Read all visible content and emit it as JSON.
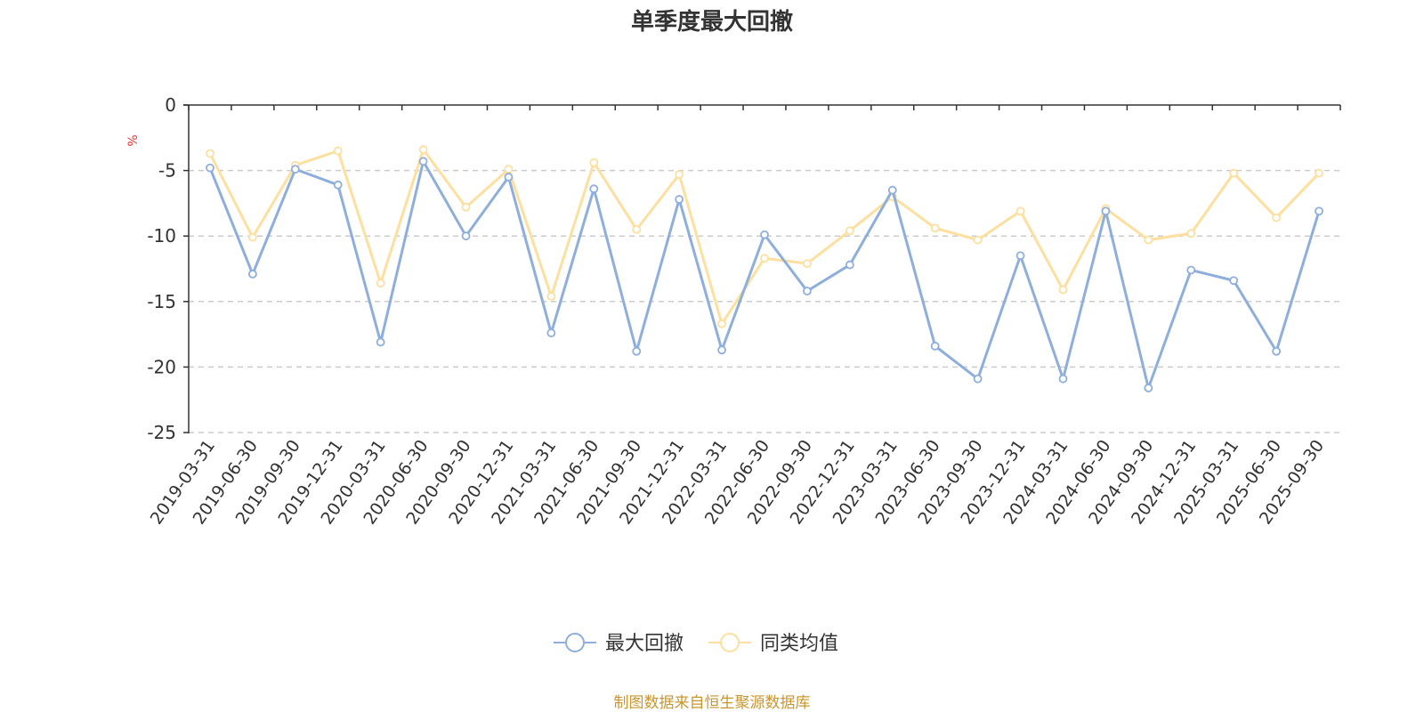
{
  "chart_data": {
    "type": "line",
    "title": "单季度最大回撤",
    "ylabel": "%",
    "xlabel": "",
    "ylim": [
      -25,
      0
    ],
    "yticks": [
      0,
      -5,
      -10,
      -15,
      -20,
      -25
    ],
    "grid": true,
    "legend_position": "bottom-center",
    "categories": [
      "2019-03-31",
      "2019-06-30",
      "2019-09-30",
      "2019-12-31",
      "2020-03-31",
      "2020-06-30",
      "2020-09-30",
      "2020-12-31",
      "2021-03-31",
      "2021-06-30",
      "2021-09-30",
      "2021-12-31",
      "2022-03-31",
      "2022-06-30",
      "2022-09-30",
      "2022-12-31",
      "2023-03-31",
      "2023-06-30",
      "2023-09-30",
      "2023-12-31",
      "2024-03-31",
      "2024-06-30",
      "2024-09-30",
      "2024-12-31",
      "2025-03-31",
      "2025-06-30",
      "2025-09-30"
    ],
    "series": [
      {
        "name": "最大回撤",
        "color": "#8eaedb",
        "values": [
          -4.8,
          -12.9,
          -4.9,
          -6.1,
          -18.1,
          -4.3,
          -10.0,
          -5.5,
          -17.4,
          -6.4,
          -18.8,
          -7.2,
          -18.7,
          -9.9,
          -14.2,
          -12.2,
          -6.5,
          -18.4,
          -20.9,
          -11.5,
          -20.9,
          -8.1,
          -21.6,
          -12.6,
          -13.4,
          -18.8,
          -8.1
        ]
      },
      {
        "name": "同类均值",
        "color": "#fddf9f",
        "values": [
          -3.7,
          -10.1,
          -4.6,
          -3.5,
          -13.6,
          -3.4,
          -7.8,
          -4.9,
          -14.6,
          -4.4,
          -9.5,
          -5.3,
          -16.7,
          -11.7,
          -12.1,
          -9.6,
          -7.0,
          -9.4,
          -10.3,
          -8.1,
          -14.1,
          -7.9,
          -10.3,
          -9.8,
          -5.2,
          -8.6,
          -5.2
        ]
      }
    ],
    "source_text": "制图数据来自恒生聚源数据库"
  },
  "colors": {
    "axis": "#333333",
    "grid": "#cccccc",
    "unit": "#e8322d",
    "source": "#c8962f"
  }
}
